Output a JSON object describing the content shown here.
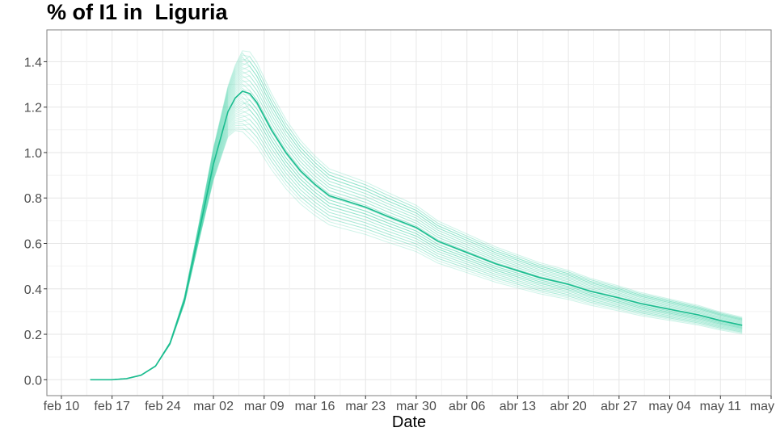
{
  "chart_data": {
    "type": "line",
    "title": "% of I1 in  Liguria",
    "xlabel": "Date",
    "ylabel": "",
    "x_ticks": [
      "feb 10",
      "feb 17",
      "feb 24",
      "mar 02",
      "mar 09",
      "mar 16",
      "mar 23",
      "mar 30",
      "abr 06",
      "abr 13",
      "abr 20",
      "abr 27",
      "may 04",
      "may 11",
      "may 18"
    ],
    "y_ticks": [
      "0.0",
      "0.2",
      "0.4",
      "0.6",
      "0.8",
      "1.0",
      "1.2",
      "1.4"
    ],
    "xlim": [
      "2020-02-08",
      "2020-05-18"
    ],
    "ylim": [
      -0.07,
      1.54
    ],
    "grid": true,
    "colors": {
      "main": "#1bbc8f",
      "ensemble": "#4fd3ad"
    },
    "series": [
      {
        "role": "central",
        "x": [
          "2020-02-14",
          "2020-02-17",
          "2020-02-19",
          "2020-02-21",
          "2020-02-23",
          "2020-02-25",
          "2020-02-27",
          "2020-02-29",
          "2020-03-02",
          "2020-03-04",
          "2020-03-05",
          "2020-03-06",
          "2020-03-07",
          "2020-03-08",
          "2020-03-10",
          "2020-03-12",
          "2020-03-14",
          "2020-03-16",
          "2020-03-18",
          "2020-03-20",
          "2020-03-23",
          "2020-03-26",
          "2020-03-30",
          "2020-04-02",
          "2020-04-06",
          "2020-04-10",
          "2020-04-13",
          "2020-04-16",
          "2020-04-20",
          "2020-04-23",
          "2020-04-27",
          "2020-04-30",
          "2020-05-04",
          "2020-05-08",
          "2020-05-11",
          "2020-05-14"
        ],
        "y": [
          0.0,
          0.0,
          0.005,
          0.02,
          0.06,
          0.16,
          0.35,
          0.65,
          0.95,
          1.18,
          1.24,
          1.27,
          1.26,
          1.22,
          1.1,
          1.0,
          0.92,
          0.86,
          0.81,
          0.79,
          0.76,
          0.72,
          0.67,
          0.61,
          0.56,
          0.51,
          0.48,
          0.45,
          0.42,
          0.39,
          0.36,
          0.335,
          0.31,
          0.285,
          0.26,
          0.24
        ]
      }
    ]
  }
}
